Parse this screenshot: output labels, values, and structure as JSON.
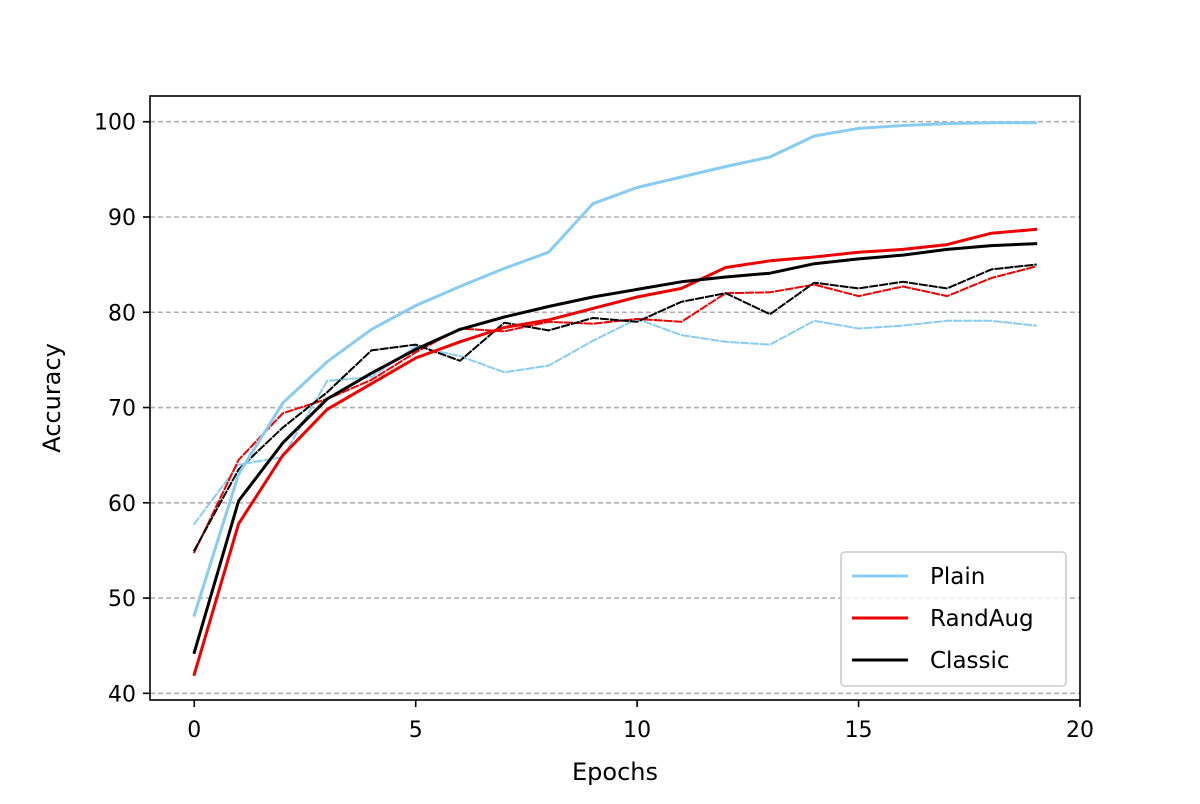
{
  "chart_data": {
    "type": "line",
    "title": "",
    "xlabel": "Epochs",
    "ylabel": "Accuracy",
    "xlim": [
      -1,
      20
    ],
    "ylim": [
      39.3,
      102.7
    ],
    "xticks": [
      0,
      5,
      10,
      15,
      20
    ],
    "yticks": [
      40,
      50,
      60,
      70,
      80,
      90,
      100
    ],
    "grid": "y-dashed",
    "legend_position": "lower-right",
    "x": [
      0,
      1,
      2,
      3,
      4,
      5,
      6,
      7,
      8,
      9,
      10,
      11,
      12,
      13,
      14,
      15,
      16,
      17,
      18,
      19
    ],
    "series": [
      {
        "name": "Plain",
        "color": "#88ccf1",
        "style": "solid",
        "in_legend": true,
        "values": [
          48.2,
          63.0,
          70.5,
          74.8,
          78.2,
          80.7,
          82.7,
          84.6,
          86.3,
          91.4,
          93.1,
          94.2,
          95.3,
          96.3,
          98.5,
          99.3,
          99.6,
          99.8,
          99.9,
          99.9
        ]
      },
      {
        "name": "RandAug",
        "color": "#ee0000",
        "style": "solid",
        "in_legend": true,
        "values": [
          42.0,
          57.8,
          65.0,
          69.8,
          72.5,
          75.2,
          76.9,
          78.4,
          79.2,
          80.4,
          81.6,
          82.5,
          84.7,
          85.4,
          85.8,
          86.3,
          86.6,
          87.1,
          88.3,
          88.7
        ]
      },
      {
        "name": "Classic",
        "color": "#000000",
        "style": "solid",
        "in_legend": true,
        "values": [
          44.3,
          60.2,
          66.3,
          70.9,
          73.6,
          76.1,
          78.2,
          79.5,
          80.6,
          81.6,
          82.4,
          83.2,
          83.7,
          84.1,
          85.1,
          85.6,
          86.0,
          86.6,
          87.0,
          87.2
        ]
      },
      {
        "color": "#88ccf1",
        "style": "dashed",
        "in_legend": false,
        "values": [
          57.8,
          64.0,
          64.8,
          72.8,
          73.2,
          76.4,
          75.4,
          73.7,
          74.4,
          77.0,
          79.3,
          77.6,
          76.9,
          76.6,
          79.1,
          78.3,
          78.6,
          79.1,
          79.1,
          78.6
        ]
      },
      {
        "color": "#ee0000",
        "style": "dashed",
        "in_legend": false,
        "values": [
          54.8,
          64.5,
          69.4,
          70.9,
          72.9,
          75.8,
          78.3,
          78.0,
          79.0,
          78.8,
          79.3,
          79.0,
          82.0,
          82.1,
          82.9,
          81.7,
          82.7,
          81.7,
          83.6,
          84.8
        ]
      },
      {
        "color": "#000000",
        "style": "dashed",
        "in_legend": false,
        "values": [
          55.0,
          63.5,
          67.9,
          71.6,
          76.0,
          76.6,
          74.9,
          78.9,
          78.1,
          79.4,
          79.0,
          81.1,
          82.0,
          79.8,
          83.1,
          82.5,
          83.2,
          82.5,
          84.5,
          85.0
        ]
      }
    ]
  }
}
